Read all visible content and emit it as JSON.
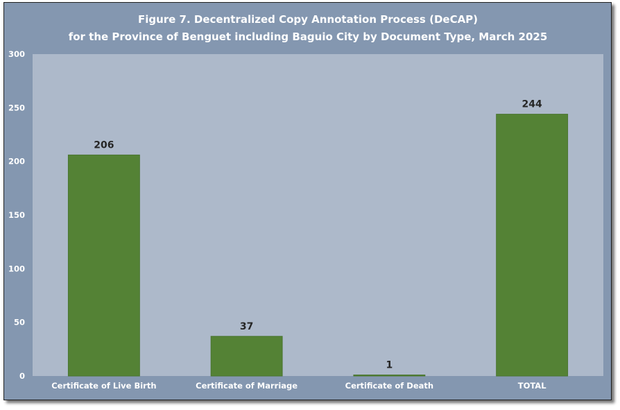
{
  "chart_data": {
    "type": "bar",
    "title_lines": [
      "Figure 7. Decentralized Copy Annotation Process (DeCAP)",
      "for the Province of Benguet including Baguio City by Document Type, March 2025"
    ],
    "categories": [
      "Certificate of Live Birth",
      "Certificate of Marriage",
      "Certificate of Death",
      "TOTAL"
    ],
    "values": [
      206,
      37,
      1,
      244
    ],
    "ylim": [
      0,
      300
    ],
    "yticks": [
      0,
      50,
      100,
      150,
      200,
      250,
      300
    ],
    "grid": false,
    "legend": false,
    "colors": {
      "frame": "#8497b0",
      "plot_area": "#adb9ca",
      "bar": "#548235",
      "bar_edge": "#4a7530",
      "title": "#ffffff",
      "data_label": "#262626"
    }
  }
}
